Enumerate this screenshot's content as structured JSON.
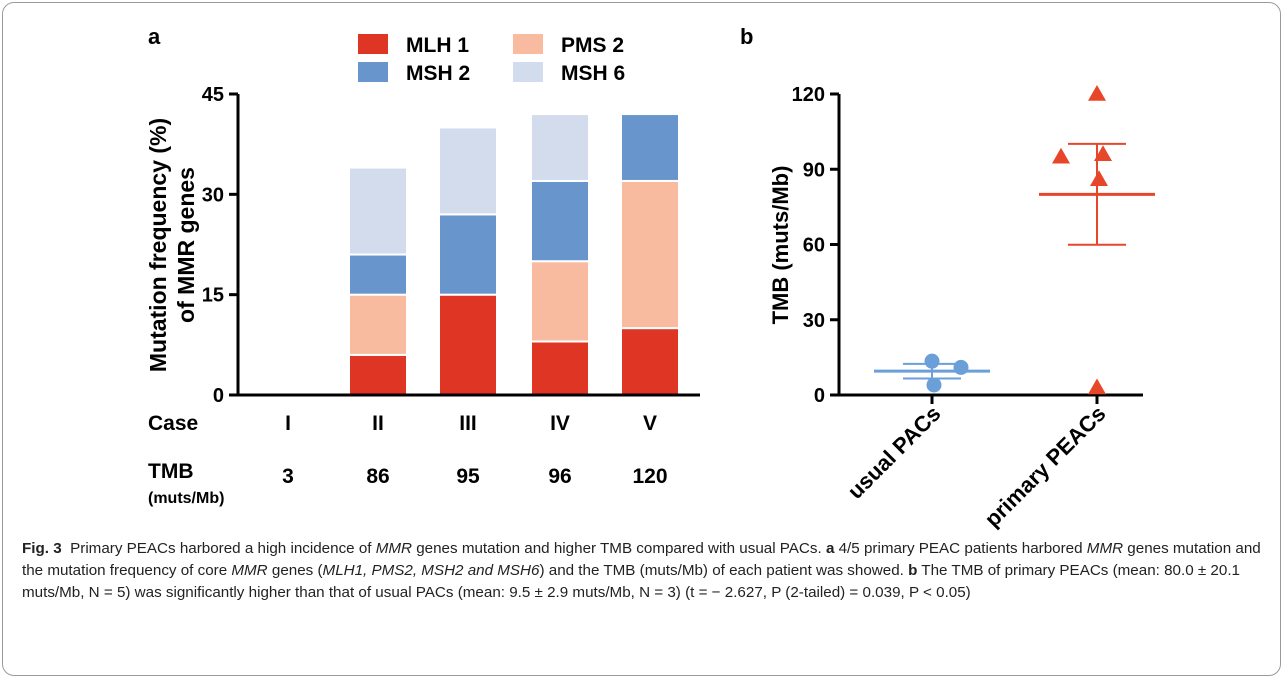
{
  "panel_a_label": "a",
  "panel_b_label": "b",
  "colors": {
    "MLH 1": "#de3525",
    "PMS 2": "#f9bba0",
    "MSH 2": "#6895cc",
    "MSH 6": "#d3dced",
    "usual": "#6a9fd8",
    "primary": "#e8462a"
  },
  "chart_data": [
    {
      "type": "bar",
      "stacked": true,
      "ylabel_line1": "Mutation frequency (%)",
      "ylabel_line2": "of MMR genes",
      "ylim": [
        0,
        45
      ],
      "yticks": [
        0,
        15,
        30,
        45
      ],
      "categories": [
        "I",
        "II",
        "III",
        "IV",
        "V"
      ],
      "case_label": "Case",
      "tmb_label": "TMB",
      "tmb_unit": "(muts/Mb)",
      "tmb_values": [
        "3",
        "86",
        "95",
        "96",
        "120"
      ],
      "legend_position": "top",
      "series": [
        {
          "name": "MLH 1",
          "values": [
            0,
            6,
            15,
            8,
            10
          ]
        },
        {
          "name": "PMS 2",
          "values": [
            0,
            9,
            0,
            12,
            22
          ]
        },
        {
          "name": "MSH 2",
          "values": [
            0,
            6,
            12,
            12,
            10
          ]
        },
        {
          "name": "MSH 6",
          "values": [
            0,
            13,
            13,
            10,
            0
          ]
        }
      ]
    },
    {
      "type": "scatter",
      "ylabel": "TMB (muts/Mb)",
      "ylim": [
        0,
        120
      ],
      "yticks": [
        0,
        30,
        60,
        90,
        120
      ],
      "categories": [
        "usual PACs",
        "primary PEACs"
      ],
      "groups": [
        {
          "name": "usual PACs",
          "points": [
            13.5,
            11,
            4
          ],
          "mean": 9.5,
          "sem": 2.9
        },
        {
          "name": "primary PEACs",
          "points": [
            120,
            95,
            96,
            86,
            3
          ],
          "mean": 80.0,
          "sem": 20.1
        }
      ]
    }
  ],
  "caption": {
    "fig": "Fig. 3",
    "s1": "Primary PEACs harbored a high incidence of ",
    "s2": "MMR",
    "s3": " genes mutation and higher TMB compared with usual PACs. ",
    "s4": "a",
    "s5": " 4/5 primary PEAC patients harbored ",
    "s6": "MMR",
    "s7": " genes mutation and the mutation frequency of core ",
    "s8": "MMR",
    "s9": " genes (",
    "s10": "MLH1, PMS2, MSH2 and MSH6",
    "s11": ") and the TMB (muts/Mb) of each patient was showed. ",
    "s12": "b",
    "s13": " The TMB of primary PEACs (mean: 80.0 ± 20.1 muts/Mb, N = 5) was significantly higher than that of usual PACs (mean: 9.5 ± 2.9 muts/Mb, N = 3) (t = − 2.627, P (2-tailed) = 0.039, P < 0.05)"
  }
}
